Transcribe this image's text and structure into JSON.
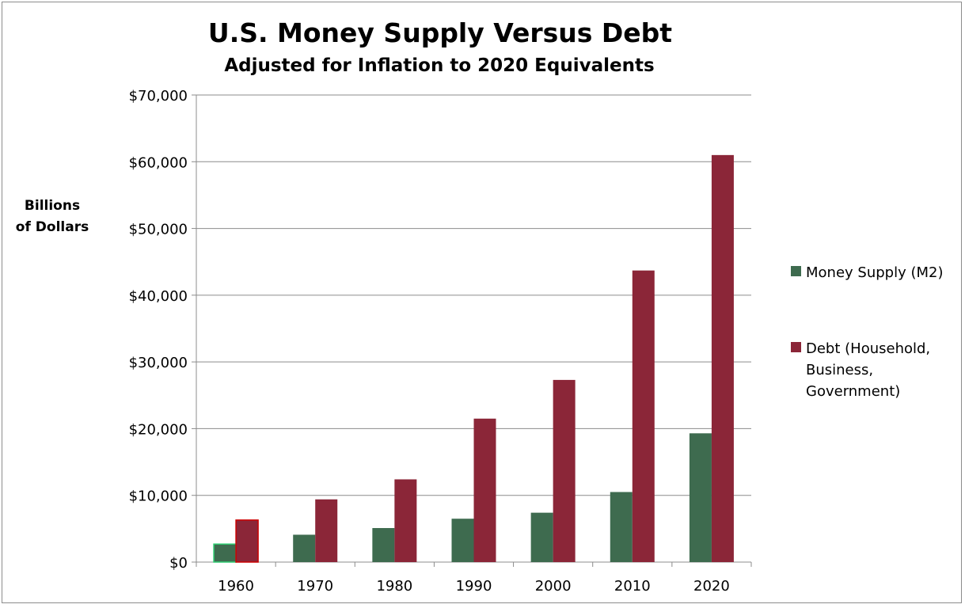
{
  "chart_data": {
    "type": "bar",
    "title": "U.S. Money Supply Versus Debt",
    "subtitle": "Adjusted for Inflation to 2020 Equivalents",
    "ylabel_line1": "Billions",
    "ylabel_line2": "of Dollars",
    "xlabel": "",
    "categories": [
      "1960",
      "1970",
      "1980",
      "1990",
      "2000",
      "2010",
      "2020"
    ],
    "series": [
      {
        "name": "Money Supply (M2)",
        "color": "#3e6b4f",
        "values": [
          2700,
          4100,
          5100,
          6500,
          7400,
          10500,
          19300
        ]
      },
      {
        "name_lines": [
          "Debt (Household,",
          "Business,",
          "Government)"
        ],
        "color": "#8b2638",
        "values": [
          6300,
          9400,
          12400,
          21500,
          27300,
          43700,
          61000
        ]
      }
    ],
    "ylim": [
      0,
      70000
    ],
    "yticks": [
      0,
      10000,
      20000,
      30000,
      40000,
      50000,
      60000,
      70000
    ],
    "ytick_labels": [
      "$0",
      "$10,000",
      "$20,000",
      "$30,000",
      "$40,000",
      "$50,000",
      "$60,000",
      "$70,000"
    ],
    "grid": true,
    "legend_position": "right",
    "highlight_category": "1960",
    "highlight_outline_colors": [
      "#2ecc71",
      "#cc0000"
    ]
  }
}
